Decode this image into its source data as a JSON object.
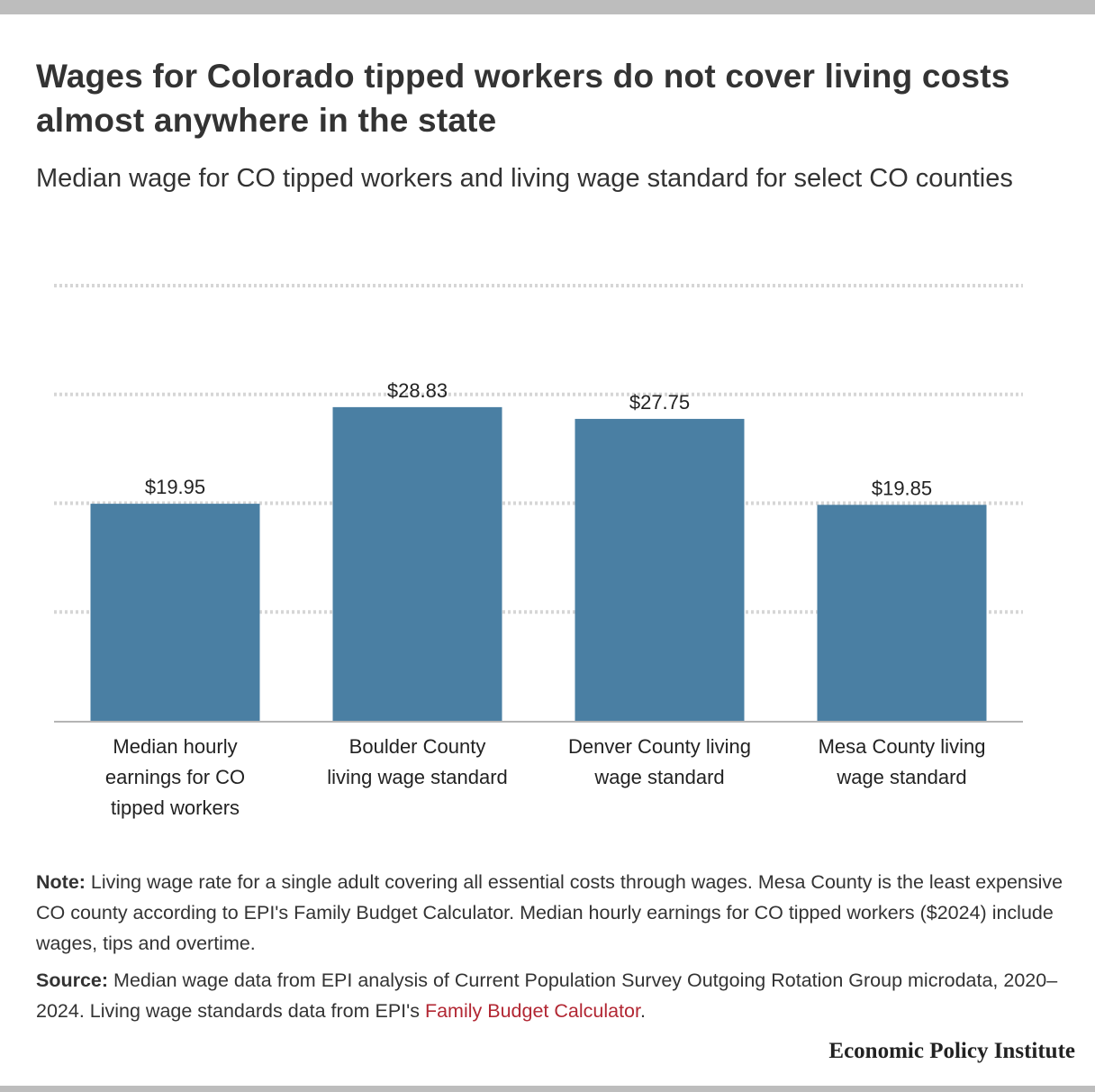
{
  "header": {
    "title": "Wages for Colorado tipped workers do not cover living costs almost anywhere in the state",
    "subtitle": "Median wage for CO tipped workers and living wage standard for select CO counties"
  },
  "chart_data": {
    "type": "bar",
    "categories": [
      "Median hourly earnings for CO tipped workers",
      "Boulder County living wage standard",
      "Denver County living wage standard",
      "Mesa County living wage standard"
    ],
    "category_lines": [
      [
        "Median hourly",
        "earnings for CO",
        "tipped workers"
      ],
      [
        "Boulder County",
        "living wage standard"
      ],
      [
        "Denver County living",
        "wage standard"
      ],
      [
        "Mesa County living",
        "wage standard"
      ]
    ],
    "values": [
      19.95,
      28.83,
      27.75,
      19.85
    ],
    "value_labels": [
      "$19.95",
      "$28.83",
      "$27.75",
      "$19.85"
    ],
    "ylim": [
      0,
      40
    ],
    "gridlines": [
      10,
      20,
      30,
      40
    ],
    "bar_color": "#4a7fa3",
    "grid": true,
    "y_tick_labels_shown": false
  },
  "footer": {
    "note_label": "Note:",
    "note_text": " Living wage rate for a single adult covering all essential costs through wages. Mesa County is the least expensive CO county according to EPI's Family Budget Calculator. Median hourly earnings for CO tipped workers ($2024) include wages, tips and overtime.",
    "source_label": "Source:",
    "source_text": " Median wage data from EPI analysis of Current Population Survey Outgoing Rotation Group microdata, 2020–2024. Living wage standards data from EPI's ",
    "source_link": "Family Budget Calculator",
    "source_end": ".",
    "brand": "Economic Policy Institute"
  },
  "colors": {
    "accent_link": "#b22733",
    "rule": "#bdbdbd"
  }
}
